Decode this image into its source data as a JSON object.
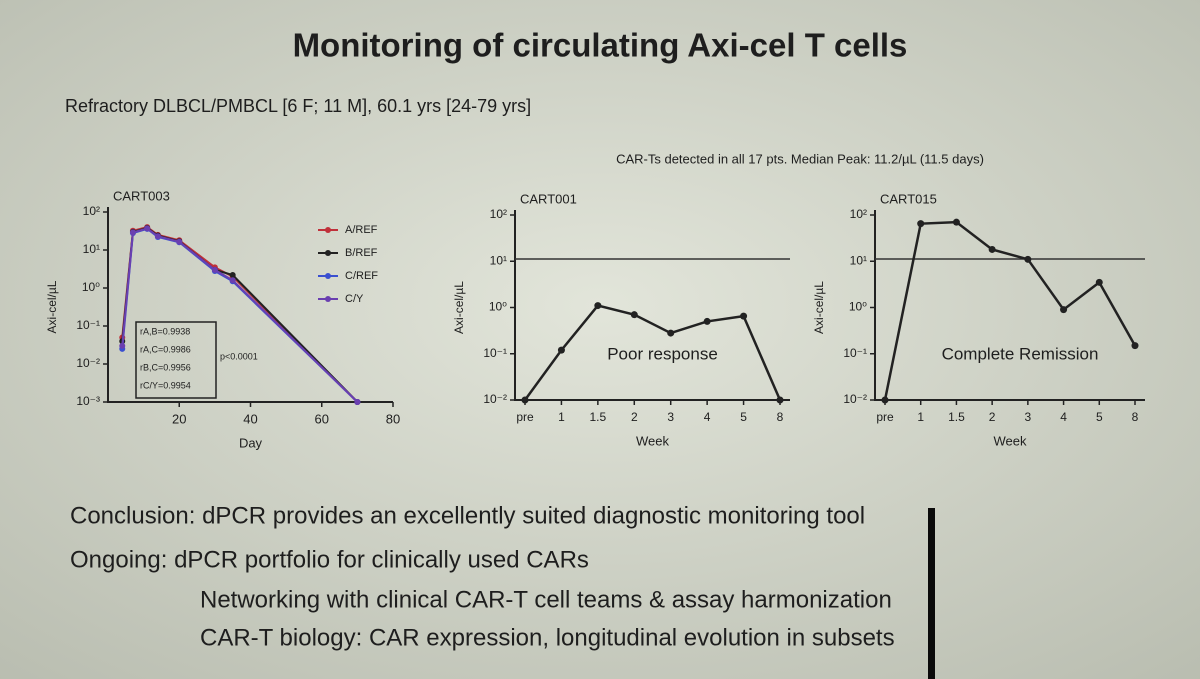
{
  "slide": {
    "title": "Monitoring of circulating Axi-cel T cells",
    "subtitle": "Refractory DLBCL/PMBCL [6 F; 11 M], 60.1 yrs [24-79 yrs]",
    "note": "CAR-Ts detected in all 17 pts. Median Peak: 11.2/µL (11.5 days)",
    "lines": [
      "Conclusion: dPCR provides an excellently suited diagnostic monitoring tool",
      "Ongoing: dPCR portfolio for clinically used CARs",
      "Networking with clinical CAR-T cell teams & assay harmonization",
      "CAR-T biology: CAR expression, longitudinal evolution in subsets"
    ]
  },
  "chart_data": [
    {
      "type": "line",
      "title": "CART003",
      "x_label": "Day",
      "y_label": "Axi-cel/µL",
      "log_y": true,
      "legend": "right",
      "x": [
        4,
        7,
        11,
        14,
        20,
        30,
        35,
        70
      ],
      "xlim": [
        0,
        80
      ],
      "xticks": [
        20,
        40,
        60,
        80
      ],
      "ylim": [
        0.001,
        100
      ],
      "yticks": [
        {
          "value": 0.001,
          "label": "10⁻³"
        },
        {
          "value": 0.01,
          "label": "10⁻²"
        },
        {
          "value": 0.1,
          "label": "10⁻¹"
        },
        {
          "value": 1,
          "label": "10⁰"
        },
        {
          "value": 10,
          "label": "10¹"
        },
        {
          "value": 100,
          "label": "10²"
        }
      ],
      "series": [
        {
          "name": "A/REF",
          "color": "#c0303a",
          "values": [
            0.05,
            32,
            40,
            25,
            18,
            3.5,
            2,
            0.001
          ]
        },
        {
          "name": "B/REF",
          "color": "#222222",
          "values": [
            0.04,
            30,
            38,
            24,
            17,
            3,
            2.2,
            0.001
          ]
        },
        {
          "name": "C/REF",
          "color": "#3a4fd0",
          "values": [
            0.025,
            28,
            36,
            22,
            16,
            2.8,
            1.5,
            0.001
          ]
        },
        {
          "name": "C/Y",
          "color": "#6a3fb0",
          "values": [
            0.03,
            29,
            37,
            23,
            16.5,
            3,
            1.6,
            0.001
          ]
        }
      ],
      "annotations": [
        "rA,B=0.9938",
        "rA,C=0.9986",
        "rB,C=0.9956",
        "rC/Y=0.9954",
        "p<0.0001"
      ]
    },
    {
      "type": "line",
      "title": "CART001",
      "x_label": "Week",
      "y_label": "Axi-cel/µL",
      "log_y": true,
      "categories": [
        "pre",
        "1",
        "1.5",
        "2",
        "3",
        "4",
        "5",
        "8"
      ],
      "values": [
        0.01,
        0.12,
        1.1,
        0.7,
        0.28,
        0.5,
        0.65,
        0.01
      ],
      "color": "#222222",
      "ylim": [
        0.01,
        100
      ],
      "yticks": [
        {
          "value": 0.01,
          "label": "10⁻²"
        },
        {
          "value": 0.1,
          "label": "10⁻¹"
        },
        {
          "value": 1,
          "label": "10⁰"
        },
        {
          "value": 10,
          "label": "10¹"
        },
        {
          "value": 100,
          "label": "10²"
        }
      ],
      "hline": 11.2,
      "annotation": "Poor response"
    },
    {
      "type": "line",
      "title": "CART015",
      "x_label": "Week",
      "y_label": "Axi-cel/µL",
      "log_y": true,
      "categories": [
        "pre",
        "1",
        "1.5",
        "2",
        "3",
        "4",
        "5",
        "8"
      ],
      "values": [
        0.01,
        65,
        70,
        18,
        11,
        0.9,
        3.5,
        0.15
      ],
      "color": "#222222",
      "ylim": [
        0.01,
        100
      ],
      "yticks": [
        {
          "value": 0.01,
          "label": "10⁻²"
        },
        {
          "value": 0.1,
          "label": "10⁻¹"
        },
        {
          "value": 1,
          "label": "10⁰"
        },
        {
          "value": 10,
          "label": "10¹"
        },
        {
          "value": 100,
          "label": "10²"
        }
      ],
      "hline": 11.2,
      "annotation": "Complete Remission"
    }
  ]
}
